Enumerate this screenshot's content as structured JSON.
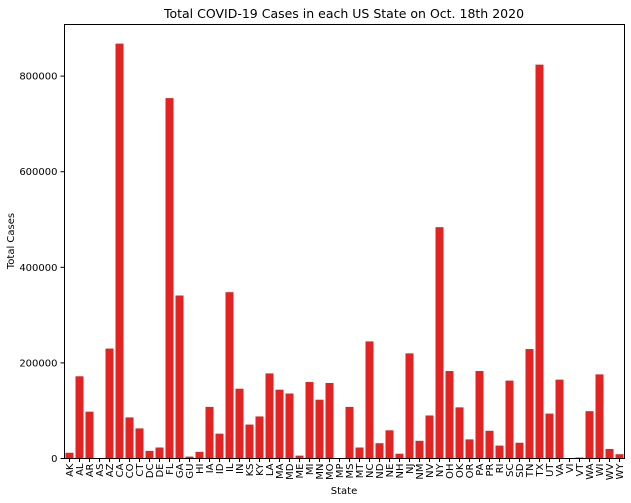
{
  "chart_data": {
    "type": "bar",
    "title": "Total COVID-19 Cases in each US State on Oct. 18th 2020",
    "xlabel": "State",
    "ylabel": "Total Cases",
    "ylim": [
      0,
      908000
    ],
    "yticks": [
      0,
      200000,
      400000,
      600000,
      800000
    ],
    "ytick_labels": [
      "0",
      "200000",
      "400000",
      "600000",
      "800000"
    ],
    "grid": false,
    "bar_color": "#e32222",
    "categories": [
      "AK",
      "AL",
      "AR",
      "AS",
      "AZ",
      "CA",
      "CO",
      "CT",
      "DC",
      "DE",
      "FL",
      "GA",
      "GU",
      "HI",
      "IA",
      "ID",
      "IL",
      "IN",
      "KS",
      "KY",
      "LA",
      "MA",
      "MD",
      "ME",
      "MI",
      "MN",
      "MO",
      "MP",
      "MS",
      "MT",
      "NC",
      "ND",
      "NE",
      "NH",
      "NJ",
      "NM",
      "NV",
      "NY",
      "OH",
      "OK",
      "OR",
      "PA",
      "PR",
      "RI",
      "SC",
      "SD",
      "TN",
      "TX",
      "UT",
      "VA",
      "VI",
      "VT",
      "WA",
      "WI",
      "WV",
      "WY"
    ],
    "values": [
      12000,
      172000,
      98000,
      0,
      230000,
      868000,
      86000,
      63000,
      16000,
      23000,
      754000,
      341000,
      4000,
      14000,
      108000,
      52000,
      348000,
      146000,
      71000,
      88000,
      178000,
      144000,
      136000,
      6000,
      160000,
      123000,
      158000,
      0,
      108000,
      23000,
      245000,
      32000,
      59000,
      10000,
      220000,
      37000,
      90000,
      484000,
      183000,
      107000,
      40000,
      183000,
      58000,
      27000,
      163000,
      33000,
      229000,
      824000,
      94000,
      165000,
      1000,
      2000,
      99000,
      176000,
      20000,
      9000
    ]
  }
}
